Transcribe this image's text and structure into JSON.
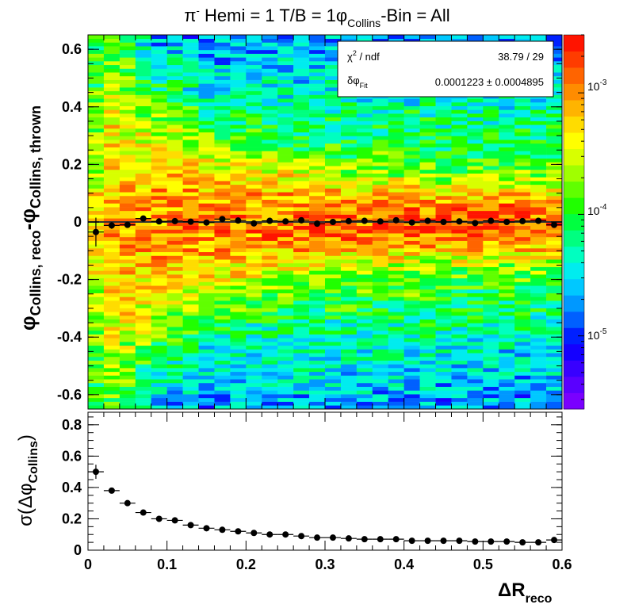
{
  "title": {
    "pre": "π",
    "sup": "-",
    "mid": " Hemi = 1 T/B = 1",
    "phi": "φ",
    "sub": "Collins",
    "post": "-Bin = All"
  },
  "top_ylabel": {
    "a_phi": "φ",
    "a_sub": "Collins, reco",
    "b_dash": "-",
    "b_phi": "φ",
    "b_sub": "Collins, thrown"
  },
  "bottom_ylabel": {
    "pre": "σ(Δ",
    "phi": "φ",
    "sub": "Collins",
    "post": ")"
  },
  "xlabel": {
    "main": "ΔR",
    "sub": "reco"
  },
  "stats": {
    "row1_label_a": "χ",
    "row1_label_sup": "2",
    "row1_label_b": " / ndf",
    "row1_value": "38.79 / 29",
    "row2_label_a": "δφ",
    "row2_label_sub": "Fit",
    "row2_value": "0.0001223 ± 0.0004895"
  },
  "colorbar_labels": [
    {
      "base": "10",
      "exp": "-3",
      "value": 0.001
    },
    {
      "base": "10",
      "exp": "-4",
      "value": 0.0001
    },
    {
      "base": "10",
      "exp": "-5",
      "value": 1e-05
    }
  ],
  "chart_data": [
    {
      "type": "heatmap",
      "description_note": "",
      "xlim": [
        0,
        0.6
      ],
      "ylim": [
        -0.65,
        0.65
      ],
      "x_ticks": [],
      "y_ticks": [
        "-0.6",
        "-0.4",
        "-0.2",
        "0",
        "0.2",
        "0.4",
        "0.6"
      ],
      "z_scale": "log",
      "zlim": [
        2.5e-06,
        0.003
      ],
      "profile": {
        "x": [
          0.01,
          0.03,
          0.05,
          0.07,
          0.09,
          0.11,
          0.13,
          0.15,
          0.17,
          0.19,
          0.21,
          0.23,
          0.25,
          0.27,
          0.29,
          0.31,
          0.33,
          0.35,
          0.37,
          0.39,
          0.41,
          0.43,
          0.45,
          0.47,
          0.49,
          0.51,
          0.53,
          0.55,
          0.57,
          0.59
        ],
        "y": [
          -0.035,
          -0.012,
          -0.01,
          0.012,
          0.002,
          0.003,
          0.001,
          -0.002,
          0.01,
          0.005,
          -0.005,
          0.004,
          0.002,
          0.006,
          -0.006,
          0.0,
          0.003,
          0.004,
          0.002,
          0.006,
          -0.002,
          0.004,
          0.0,
          0.002,
          -0.004,
          0.004,
          0.0,
          0.003,
          0.004,
          -0.01
        ],
        "yerr": [
          0.05,
          0.012,
          0.01,
          0.01,
          0.008,
          0.008,
          0.008,
          0.008,
          0.008,
          0.008,
          0.008,
          0.008,
          0.008,
          0.008,
          0.008,
          0.008,
          0.008,
          0.008,
          0.008,
          0.008,
          0.008,
          0.008,
          0.008,
          0.008,
          0.008,
          0.008,
          0.008,
          0.008,
          0.008,
          0.01
        ]
      },
      "fit_line_y": 0.0001223,
      "grid": false
    },
    {
      "type": "scatter",
      "xlim": [
        0,
        0.6
      ],
      "ylim": [
        0,
        0.88
      ],
      "x_ticks": [
        "0",
        "0.1",
        "0.2",
        "0.3",
        "0.4",
        "0.5",
        "0.6"
      ],
      "y_ticks": [
        "0",
        "0.2",
        "0.4",
        "0.6",
        "0.8"
      ],
      "x": [
        0.01,
        0.03,
        0.05,
        0.07,
        0.09,
        0.11,
        0.13,
        0.15,
        0.17,
        0.19,
        0.21,
        0.23,
        0.25,
        0.27,
        0.29,
        0.31,
        0.33,
        0.35,
        0.37,
        0.39,
        0.41,
        0.43,
        0.45,
        0.47,
        0.49,
        0.51,
        0.53,
        0.55,
        0.57,
        0.59
      ],
      "y": [
        0.5,
        0.38,
        0.3,
        0.24,
        0.2,
        0.19,
        0.16,
        0.14,
        0.13,
        0.12,
        0.11,
        0.1,
        0.1,
        0.09,
        0.08,
        0.08,
        0.075,
        0.07,
        0.07,
        0.07,
        0.06,
        0.06,
        0.06,
        0.06,
        0.055,
        0.055,
        0.055,
        0.05,
        0.05,
        0.065
      ],
      "yerr": [
        0.045,
        0.012,
        0.008,
        0.006,
        0.005,
        0.005,
        0.004,
        0.004,
        0.004,
        0.004,
        0.004,
        0.004,
        0.004,
        0.004,
        0.004,
        0.004,
        0.004,
        0.004,
        0.004,
        0.004,
        0.004,
        0.004,
        0.004,
        0.004,
        0.004,
        0.004,
        0.004,
        0.004,
        0.004,
        0.006
      ],
      "xerr": 0.01,
      "grid": false
    }
  ]
}
